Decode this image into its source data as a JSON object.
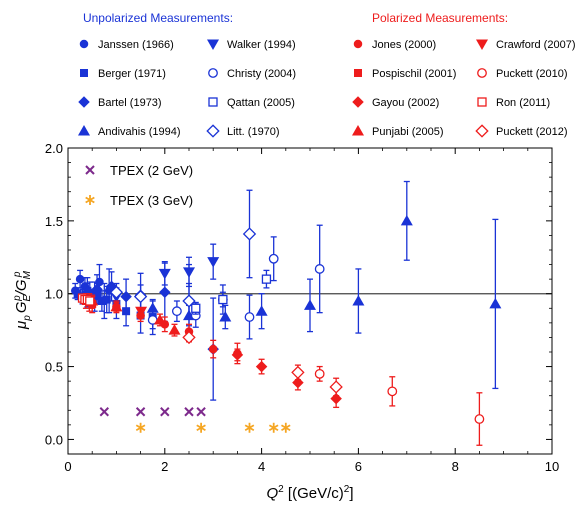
{
  "colors": {
    "blue": "#1a33d6",
    "red": "#ee1c1c",
    "purple": "#7d2a8c",
    "orange": "#f5a623",
    "unpolarized_header": "#1a33d6",
    "polarized_header": "#ee1c1c"
  },
  "legend": {
    "unpolarized_header": "Unpolarized Measurements:",
    "polarized_header": "Polarized Measurements:",
    "unpolarized_col1": [
      {
        "label": "Janssen (1966)",
        "marker": "circle-filled",
        "color": "blue"
      },
      {
        "label": "Berger (1971)",
        "marker": "square-filled",
        "color": "blue"
      },
      {
        "label": "Bartel (1973)",
        "marker": "diamond-filled",
        "color": "blue"
      },
      {
        "label": "Andivahis (1994)",
        "marker": "triangle-up-filled",
        "color": "blue"
      }
    ],
    "unpolarized_col2": [
      {
        "label": "Walker (1994)",
        "marker": "triangle-down-filled",
        "color": "blue"
      },
      {
        "label": "Christy (2004)",
        "marker": "circle-open",
        "color": "blue"
      },
      {
        "label": "Qattan (2005)",
        "marker": "square-open",
        "color": "blue"
      },
      {
        "label": "Litt. (1970)",
        "marker": "diamond-open",
        "color": "blue"
      }
    ],
    "polarized_col1": [
      {
        "label": "Jones (2000)",
        "marker": "circle-filled",
        "color": "red"
      },
      {
        "label": "Pospischil (2001)",
        "marker": "square-filled",
        "color": "red"
      },
      {
        "label": "Gayou (2002)",
        "marker": "diamond-filled",
        "color": "red"
      },
      {
        "label": "Punjabi (2005)",
        "marker": "triangle-up-filled",
        "color": "red"
      }
    ],
    "polarized_col2": [
      {
        "label": "Crawford (2007)",
        "marker": "triangle-down-filled",
        "color": "red"
      },
      {
        "label": "Puckett (2010)",
        "marker": "circle-open",
        "color": "red"
      },
      {
        "label": "Ron (2011)",
        "marker": "square-open",
        "color": "red"
      },
      {
        "label": "Puckett (2012)",
        "marker": "diamond-open",
        "color": "red"
      }
    ],
    "tpex": [
      {
        "label": "TPEX (2 GeV)",
        "marker": "x",
        "color": "purple"
      },
      {
        "label": "TPEX (3 GeV)",
        "marker": "asterisk",
        "color": "orange"
      }
    ]
  },
  "axes": {
    "xlabel_main": "Q",
    "xlabel_sup": "2",
    "xlabel_unit": " [(GeV/c)",
    "xlabel_unit_sup": "2",
    "xlabel_close": "]",
    "ylabel_mu": "μ",
    "ylabel_p": "p",
    "ylabel_G": "G",
    "ylabel_E": "E",
    "ylabel_Gm": "/G",
    "ylabel_M": "M",
    "ylabel_psup": "p"
  },
  "chart_data": {
    "type": "scatter",
    "xlim": [
      0,
      10
    ],
    "ylim": [
      -0.1,
      2.0
    ],
    "xticks": [
      0,
      2,
      4,
      6,
      8,
      10
    ],
    "yticks": [
      0.0,
      0.5,
      1.0,
      1.5,
      2.0
    ],
    "xtick_labels": [
      "0",
      "2",
      "4",
      "6",
      "8",
      "10"
    ],
    "ytick_labels": [
      "0.0",
      "0.5",
      "1.0",
      "1.5",
      "2.0"
    ],
    "reference_line_y": 1.0,
    "grid": false,
    "legend_position": "top",
    "series": [
      {
        "name": "Janssen (1966)",
        "marker": "circle-filled",
        "color": "blue",
        "points": [
          [
            0.15,
            1.02,
            0.05
          ],
          [
            0.25,
            1.1,
            0.06
          ],
          [
            0.35,
            1.05,
            0.06
          ],
          [
            0.45,
            1.0,
            0.08
          ],
          [
            0.55,
            0.98,
            0.1
          ],
          [
            0.65,
            1.08,
            0.12
          ],
          [
            0.75,
            0.95,
            0.12
          ],
          [
            0.85,
            1.02,
            0.15
          ]
        ]
      },
      {
        "name": "Berger (1971)",
        "marker": "square-filled",
        "color": "blue",
        "points": [
          [
            0.2,
            1.0,
            0.04
          ],
          [
            0.3,
            0.98,
            0.05
          ],
          [
            0.4,
            1.02,
            0.05
          ],
          [
            0.5,
            0.97,
            0.06
          ],
          [
            0.6,
            1.0,
            0.07
          ],
          [
            0.7,
            0.95,
            0.07
          ],
          [
            0.8,
            0.96,
            0.09
          ],
          [
            1.0,
            0.93,
            0.1
          ],
          [
            1.2,
            0.88,
            0.1
          ],
          [
            1.5,
            0.85,
            0.12
          ],
          [
            1.75,
            0.84,
            0.12
          ]
        ]
      },
      {
        "name": "Bartel (1973)",
        "marker": "diamond-filled",
        "color": "blue",
        "points": [
          [
            0.4,
            1.01,
            0.1
          ],
          [
            0.6,
            1.03,
            0.1
          ],
          [
            0.9,
            1.05,
            0.1
          ],
          [
            1.2,
            0.98,
            0.12
          ],
          [
            1.5,
            0.99,
            0.15
          ],
          [
            2.0,
            1.01,
            0.2
          ],
          [
            2.5,
            0.95,
            0.25
          ],
          [
            3.0,
            0.62,
            0.35
          ]
        ]
      },
      {
        "name": "Andivahis (1994)",
        "marker": "triangle-up-filled",
        "color": "blue",
        "points": [
          [
            1.75,
            0.9,
            0.05
          ],
          [
            2.5,
            0.85,
            0.07
          ],
          [
            3.25,
            0.84,
            0.08
          ],
          [
            4.0,
            0.88,
            0.12
          ],
          [
            5.0,
            0.92,
            0.18
          ],
          [
            6.0,
            0.95,
            0.22
          ],
          [
            7.0,
            1.5,
            0.27
          ],
          [
            8.83,
            0.93,
            0.58
          ]
        ]
      },
      {
        "name": "Walker (1994)",
        "marker": "triangle-down-filled",
        "color": "blue",
        "points": [
          [
            1.0,
            0.98,
            0.06
          ],
          [
            2.0,
            1.14,
            0.08
          ],
          [
            2.5,
            1.15,
            0.1
          ],
          [
            3.0,
            1.22,
            0.12
          ]
        ]
      },
      {
        "name": "Christy (2004)",
        "marker": "circle-open",
        "color": "blue",
        "points": [
          [
            1.75,
            0.82,
            0.06
          ],
          [
            2.25,
            0.88,
            0.07
          ],
          [
            2.64,
            0.85,
            0.08
          ],
          [
            3.2,
            0.96,
            0.1
          ],
          [
            3.75,
            0.84,
            0.15
          ],
          [
            4.25,
            1.24,
            0.15
          ],
          [
            5.2,
            1.17,
            0.3
          ]
        ]
      },
      {
        "name": "Qattan (2005)",
        "marker": "square-open",
        "color": "blue",
        "points": [
          [
            2.64,
            0.9,
            0.04
          ],
          [
            3.2,
            0.96,
            0.05
          ],
          [
            4.1,
            1.1,
            0.06
          ]
        ]
      },
      {
        "name": "Litt. (1970)",
        "marker": "diamond-open",
        "color": "blue",
        "points": [
          [
            1.0,
            1.01,
            0.06
          ],
          [
            1.5,
            0.98,
            0.08
          ],
          [
            2.5,
            0.95,
            0.12
          ],
          [
            3.75,
            1.41,
            0.3
          ]
        ]
      },
      {
        "name": "Jones (2000)",
        "marker": "circle-filled",
        "color": "red",
        "points": [
          [
            0.5,
            0.94,
            0.04
          ],
          [
            1.0,
            0.91,
            0.04
          ],
          [
            1.5,
            0.85,
            0.04
          ],
          [
            2.0,
            0.79,
            0.05
          ],
          [
            2.5,
            0.74,
            0.05
          ],
          [
            3.0,
            0.62,
            0.06
          ],
          [
            3.5,
            0.59,
            0.07
          ]
        ]
      },
      {
        "name": "Pospischil (2001)",
        "marker": "square-filled",
        "color": "red",
        "points": [
          [
            0.37,
            0.95,
            0.05
          ],
          [
            0.44,
            0.94,
            0.06
          ],
          [
            0.5,
            0.93,
            0.06
          ]
        ]
      },
      {
        "name": "Gayou (2002)",
        "marker": "diamond-filled",
        "color": "red",
        "points": [
          [
            3.5,
            0.58,
            0.04
          ],
          [
            4.0,
            0.5,
            0.05
          ],
          [
            4.75,
            0.39,
            0.05
          ],
          [
            5.54,
            0.28,
            0.06
          ]
        ]
      },
      {
        "name": "Punjabi (2005)",
        "marker": "triangle-up-filled",
        "color": "red",
        "points": [
          [
            0.5,
            0.95,
            0.03
          ],
          [
            1.0,
            0.91,
            0.03
          ],
          [
            1.9,
            0.82,
            0.04
          ],
          [
            2.2,
            0.75,
            0.04
          ]
        ]
      },
      {
        "name": "Crawford (2007)",
        "marker": "triangle-down-filled",
        "color": "red",
        "points": [
          [
            1.51,
            0.88,
            0.02
          ]
        ]
      },
      {
        "name": "Puckett (2010)",
        "marker": "circle-open",
        "color": "red",
        "points": [
          [
            5.2,
            0.45,
            0.05
          ],
          [
            6.7,
            0.33,
            0.1
          ],
          [
            8.5,
            0.14,
            0.18
          ]
        ]
      },
      {
        "name": "Ron (2011)",
        "marker": "square-open",
        "color": "red",
        "points": [
          [
            0.3,
            0.97,
            0.02
          ],
          [
            0.35,
            0.96,
            0.02
          ],
          [
            0.4,
            0.96,
            0.02
          ],
          [
            0.45,
            0.95,
            0.02
          ]
        ]
      },
      {
        "name": "Puckett (2012)",
        "marker": "diamond-open",
        "color": "red",
        "points": [
          [
            2.5,
            0.7,
            0.03
          ],
          [
            4.75,
            0.46,
            0.05
          ],
          [
            5.54,
            0.36,
            0.06
          ]
        ]
      },
      {
        "name": "TPEX (2 GeV)",
        "marker": "x",
        "color": "purple",
        "points": [
          [
            0.75,
            0.19,
            0
          ],
          [
            1.5,
            0.19,
            0
          ],
          [
            2.0,
            0.19,
            0
          ],
          [
            2.5,
            0.19,
            0
          ],
          [
            2.75,
            0.19,
            0
          ]
        ]
      },
      {
        "name": "TPEX (3 GeV)",
        "marker": "asterisk",
        "color": "orange",
        "points": [
          [
            1.5,
            0.08,
            0
          ],
          [
            2.75,
            0.08,
            0
          ],
          [
            3.75,
            0.08,
            0
          ],
          [
            4.25,
            0.08,
            0
          ],
          [
            4.5,
            0.08,
            0
          ]
        ]
      }
    ]
  }
}
